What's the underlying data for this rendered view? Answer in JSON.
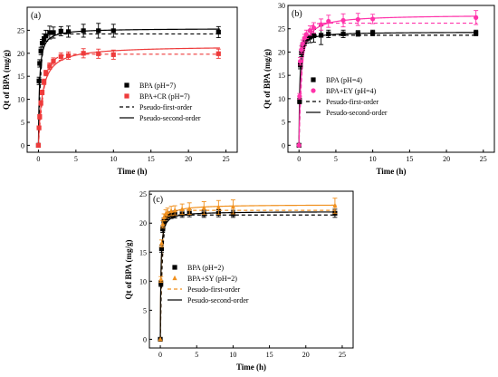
{
  "chart_data": [
    {
      "panel": "(a)",
      "type": "scatter",
      "xlabel": "Time (h)",
      "ylabel": "Qt of BPA (mg/g)",
      "xlim": [
        -1.5,
        26.5
      ],
      "ylim": [
        -1.5,
        30
      ],
      "xticks": [
        0,
        5,
        10,
        15,
        20,
        25
      ],
      "yticks": [
        0,
        5,
        10,
        15,
        20,
        25
      ],
      "grid": false,
      "legend_position": "center-right",
      "legend": [
        "BPA (pH=7)",
        "BPA+CR (pH=7)",
        "Pseudo-first-order",
        "Pseudo-second-order"
      ],
      "series": [
        {
          "name": "BPA (pH=7)",
          "color": "#000000",
          "marker": "square",
          "x": [
            0,
            0.08,
            0.17,
            0.33,
            0.5,
            0.75,
            1,
            1.5,
            2,
            3,
            4,
            6,
            8,
            10,
            24
          ],
          "y": [
            0,
            14,
            17.8,
            20.5,
            22.2,
            23.2,
            23.8,
            24.5,
            24.5,
            24.8,
            24.7,
            24.9,
            24.9,
            24.9,
            24.6
          ],
          "err": [
            0,
            0.8,
            0.8,
            0.8,
            0.8,
            1,
            1.2,
            1.4,
            1.2,
            1,
            1.2,
            1.4,
            1.6,
            1.4,
            1.2
          ]
        },
        {
          "name": "BPA+CR (pH=7)",
          "color": "#ee3b3b",
          "marker": "square",
          "x": [
            0,
            0.08,
            0.17,
            0.33,
            0.5,
            0.75,
            1,
            1.5,
            2,
            3,
            4,
            6,
            8,
            10,
            24
          ],
          "y": [
            0,
            3.8,
            6.2,
            9.2,
            11.5,
            13.8,
            15.7,
            17.2,
            18.3,
            19.3,
            19.5,
            20,
            19.9,
            19.7,
            19.9
          ],
          "err": [
            0,
            0.4,
            0.5,
            0.5,
            0.5,
            0.6,
            0.6,
            0.7,
            0.7,
            0.8,
            0.8,
            1,
            1,
            1,
            1
          ]
        }
      ],
      "fits": [
        {
          "name": "Pseudo-first-order",
          "style": "dashed",
          "color": "#000000",
          "qe": 24.2,
          "k": 3.2
        },
        {
          "name": "Pseudo-first-order",
          "style": "dashed",
          "color": "#ee3b3b",
          "qe": 19.8,
          "k": 1.3
        },
        {
          "name": "Pseudo-second-order",
          "style": "solid",
          "color": "#000000",
          "qe": 25.4,
          "k": 0.28
        },
        {
          "name": "Pseudo-second-order",
          "style": "solid",
          "color": "#ee3b3b",
          "qe": 21.6,
          "k": 0.09
        }
      ]
    },
    {
      "panel": "(b)",
      "type": "scatter",
      "xlabel": "Time (h)",
      "ylabel": "Qt of BPA (mg/g)",
      "xlim": [
        -1.5,
        26.5
      ],
      "ylim": [
        -1.5,
        30
      ],
      "xticks": [
        0,
        5,
        10,
        15,
        20,
        25
      ],
      "yticks": [
        0,
        5,
        10,
        15,
        20,
        25,
        30
      ],
      "grid": false,
      "legend_position": "center-right",
      "legend": [
        "BPA (pH=4)",
        "BPA+EY (pH=4)",
        "Pesudo-first-order",
        "Pesudo-second-order"
      ],
      "series": [
        {
          "name": "BPA (pH=4)",
          "color": "#000000",
          "marker": "square",
          "x": [
            0,
            0.08,
            0.17,
            0.33,
            0.5,
            0.75,
            1,
            1.5,
            2,
            3,
            4,
            6,
            8,
            10,
            24
          ],
          "y": [
            0,
            9.5,
            17.2,
            19.8,
            21.2,
            22.2,
            22.8,
            23.2,
            23.5,
            23.6,
            23.9,
            23.9,
            24,
            24.1,
            24.1
          ],
          "err": [
            0,
            0.6,
            0.8,
            0.8,
            0.8,
            0.8,
            0.9,
            1.2,
            1.4,
            2,
            0.8,
            0.8,
            0.6,
            0.6,
            0.6
          ]
        },
        {
          "name": "BPA+EY (pH=4)",
          "color": "#ff33aa",
          "marker": "circle",
          "x": [
            0,
            0.08,
            0.17,
            0.33,
            0.5,
            0.75,
            1,
            1.5,
            2,
            3,
            4,
            6,
            8,
            10,
            24
          ],
          "y": [
            0,
            10.5,
            18,
            20.5,
            21.8,
            23,
            23.8,
            24.6,
            25.2,
            25.9,
            26.6,
            26.8,
            27,
            27.1,
            27.4
          ],
          "err": [
            0,
            0.6,
            0.8,
            0.8,
            0.8,
            0.8,
            0.9,
            1,
            1.1,
            1.2,
            1.3,
            1.4,
            1.3,
            1,
            1.5
          ]
        }
      ],
      "fits": [
        {
          "name": "Pesudo-first-order",
          "style": "dashed",
          "color": "#000000",
          "qe": 23.6,
          "k": 3.0
        },
        {
          "name": "Pesudo-first-order",
          "style": "dashed",
          "color": "#ff33aa",
          "qe": 26.2,
          "k": 2.2
        },
        {
          "name": "Pesudo-second-order",
          "style": "solid",
          "color": "#000000",
          "qe": 24.3,
          "k": 0.4
        },
        {
          "name": "Pesudo-second-order",
          "style": "solid",
          "color": "#ff33aa",
          "qe": 28.0,
          "k": 0.13
        }
      ]
    },
    {
      "panel": "(c)",
      "type": "scatter",
      "xlabel": "Time (h)",
      "ylabel": "Qt of BPA (mg/g)",
      "xlim": [
        -1.5,
        26.5
      ],
      "ylim": [
        -1.5,
        25.5
      ],
      "xticks": [
        0,
        5,
        10,
        15,
        20,
        25
      ],
      "yticks": [
        0,
        5,
        10,
        15,
        20,
        25
      ],
      "grid": false,
      "legend_position": "bottom-right",
      "legend": [
        "BPA (pH=2)",
        "BPA+SY (pH=2)",
        "Pesudo-first-order",
        "Pesudo-second-order"
      ],
      "series": [
        {
          "name": "BPA (pH=2)",
          "color": "#000000",
          "marker": "square",
          "x": [
            0,
            0.08,
            0.17,
            0.33,
            0.5,
            0.75,
            1,
            1.5,
            2,
            3,
            4,
            6,
            8,
            10,
            24
          ],
          "y": [
            0,
            9.6,
            15.6,
            19,
            20.3,
            20.9,
            21.2,
            21.4,
            21.5,
            21.6,
            21.7,
            21.6,
            21.7,
            21.6,
            21.7
          ],
          "err": [
            0,
            0.5,
            0.6,
            0.6,
            0.6,
            0.6,
            0.6,
            0.6,
            0.6,
            0.6,
            0.6,
            0.6,
            0.6,
            0.6,
            0.7
          ]
        },
        {
          "name": "BPA+SY (pH=2)",
          "color": "#f0901e",
          "marker": "triangle",
          "x": [
            0,
            0.08,
            0.17,
            0.33,
            0.5,
            0.75,
            1,
            1.5,
            2,
            3,
            4,
            6,
            8,
            10,
            24
          ],
          "y": [
            0,
            10.3,
            16.5,
            19.8,
            21,
            21.6,
            21.9,
            22.1,
            22.2,
            22.4,
            22.5,
            22.6,
            22.7,
            22.8,
            23
          ],
          "err": [
            0,
            0.5,
            0.6,
            0.6,
            0.6,
            0.7,
            0.7,
            0.8,
            0.8,
            0.9,
            1,
            1.1,
            1.2,
            1.2,
            1.3
          ]
        }
      ],
      "fits": [
        {
          "name": "Pesudo-first-order",
          "style": "dashed",
          "color": "#f0901e",
          "qe": 22.2,
          "k": 3.4
        },
        {
          "name": "Pesudo-first-order",
          "style": "dashed",
          "color": "#000000",
          "qe": 21.4,
          "k": 3.6
        },
        {
          "name": "Pesudo-second-order",
          "style": "solid",
          "color": "#f0901e",
          "qe": 23.2,
          "k": 0.4
        },
        {
          "name": "Pesudo-second-order",
          "style": "solid",
          "color": "#000000",
          "qe": 22.0,
          "k": 0.55
        }
      ]
    }
  ]
}
